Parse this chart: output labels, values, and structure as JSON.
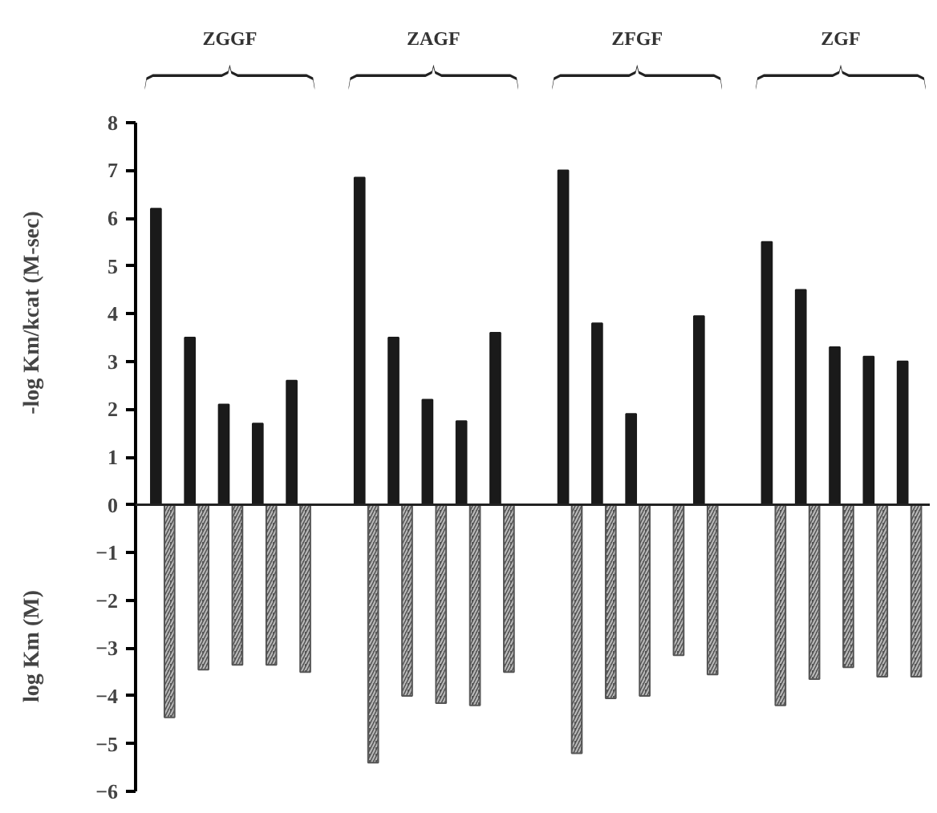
{
  "chart_data": {
    "type": "bar",
    "ylabel": "-log Km/kcat (M-sec)",
    "categories": [
      null,
      null,
      null,
      null,
      null,
      null,
      null,
      null,
      null,
      null,
      null,
      null,
      null,
      null,
      null,
      null,
      null,
      null,
      null,
      null,
      null,
      null,
      null
    ],
    "series": [
      {
        "color": "#1a1a1a",
        "values": [
          6.2,
          3.5,
          2.1,
          1.7,
          2.6,
          null,
          6.85,
          3.5,
          2.2,
          1.75,
          3.6,
          null,
          7.0,
          3.8,
          1.9,
          null,
          3.95,
          null,
          5.5,
          4.5,
          3.3,
          3.1,
          3.0
        ]
      },
      {
        "color": "#555555",
        "values": [
          -4.45,
          -3.45,
          -3.35,
          -3.35,
          -3.5,
          null,
          -5.4,
          -4.0,
          -4.15,
          -4.2,
          -3.5,
          null,
          -5.2,
          -4.05,
          -4.0,
          -3.15,
          -3.55,
          null,
          -4.2,
          -3.65,
          -3.4,
          -3.6,
          -3.6
        ]
      }
    ],
    "ylim": [
      -6,
      8
    ],
    "yticks": [
      -6,
      -5,
      -4,
      -3,
      -2,
      -1,
      0,
      1,
      2,
      3,
      4,
      5,
      6,
      7,
      8
    ],
    "ref_lines": [
      {
        "axis": "y",
        "value": 0
      }
    ],
    "annotations": [
      "ZGGF",
      "ZAGF",
      "ZFGF",
      "ZGF",
      "log Km (M)"
    ],
    "grid": false
  }
}
